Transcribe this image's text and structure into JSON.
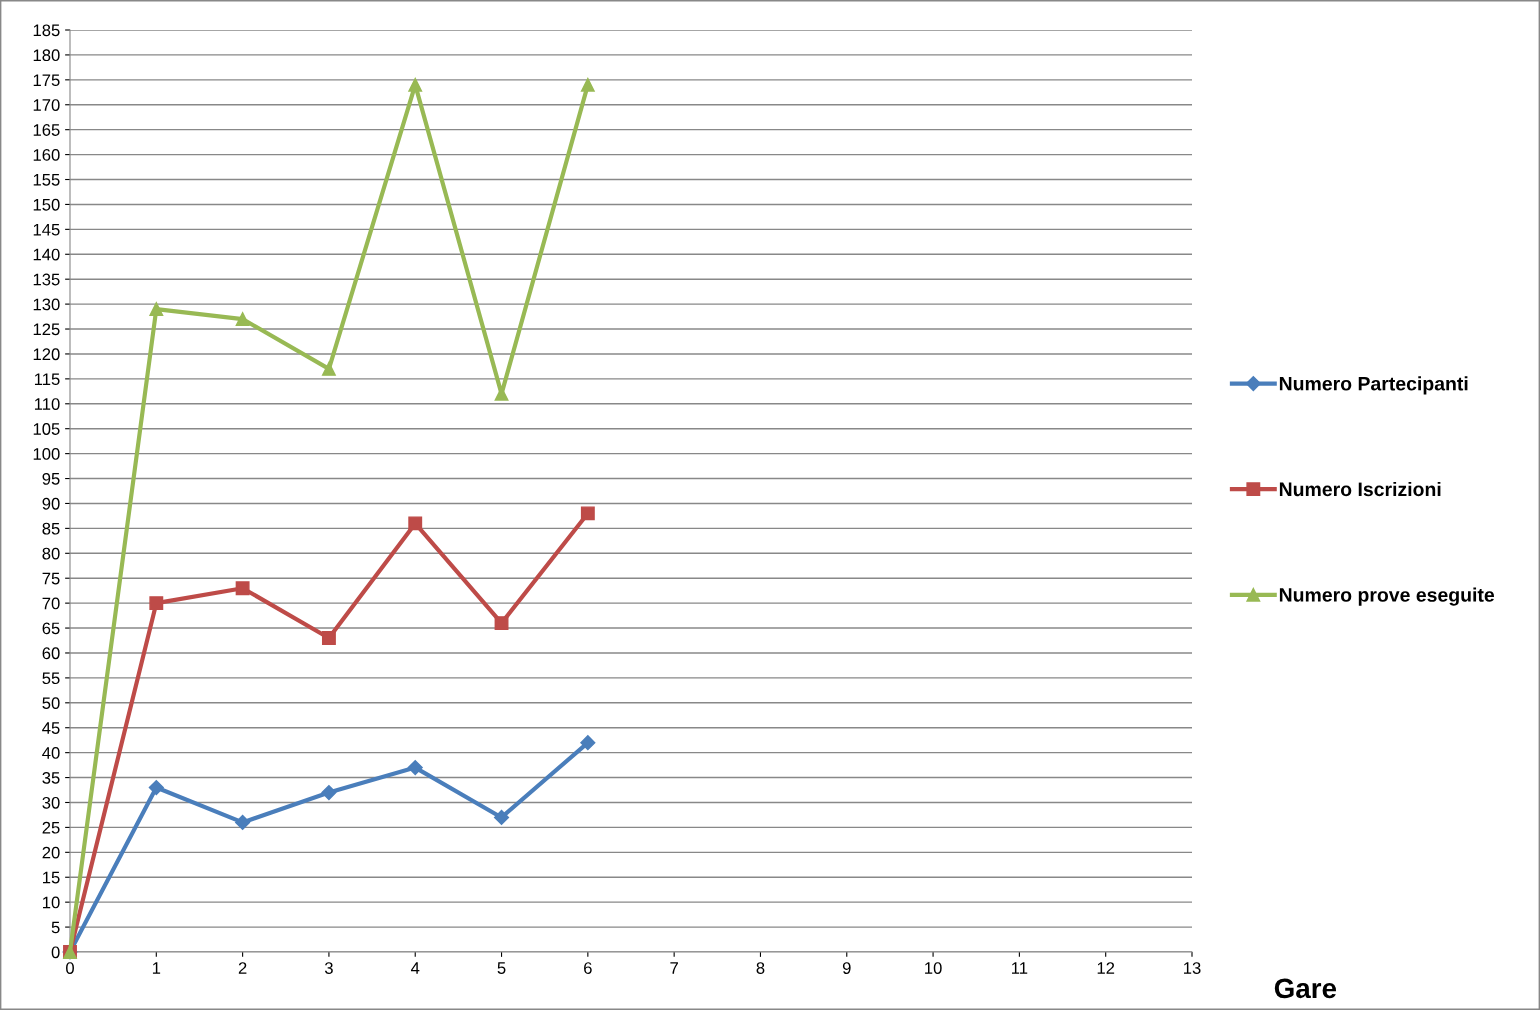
{
  "chart_data": {
    "type": "line",
    "xlabel": "Gare",
    "x": [
      0,
      1,
      2,
      3,
      4,
      5,
      6
    ],
    "series": [
      {
        "name": "Numero Partecipanti",
        "color": "#4a7ebb",
        "marker": "diamond",
        "values": [
          0,
          33,
          26,
          32,
          37,
          27,
          42
        ]
      },
      {
        "name": "Numero Iscrizioni",
        "color": "#be4b48",
        "marker": "square",
        "values": [
          0,
          70,
          73,
          63,
          86,
          66,
          88
        ]
      },
      {
        "name": "Numero prove eseguite",
        "color": "#98b954",
        "marker": "triangle",
        "values": [
          0,
          129,
          127,
          117,
          174,
          112,
          174
        ]
      }
    ],
    "xlim": [
      0,
      13
    ],
    "xticks": [
      0,
      1,
      2,
      3,
      4,
      5,
      6,
      7,
      8,
      9,
      10,
      11,
      12,
      13
    ],
    "ylim": [
      0,
      185
    ],
    "yticks": [
      0,
      5,
      10,
      15,
      20,
      25,
      30,
      35,
      40,
      45,
      50,
      55,
      60,
      65,
      70,
      75,
      80,
      85,
      90,
      95,
      100,
      105,
      110,
      115,
      120,
      125,
      130,
      135,
      140,
      145,
      150,
      155,
      160,
      165,
      170,
      175,
      180,
      185
    ],
    "grid": "y",
    "legend": "right",
    "line_style": "solid"
  }
}
